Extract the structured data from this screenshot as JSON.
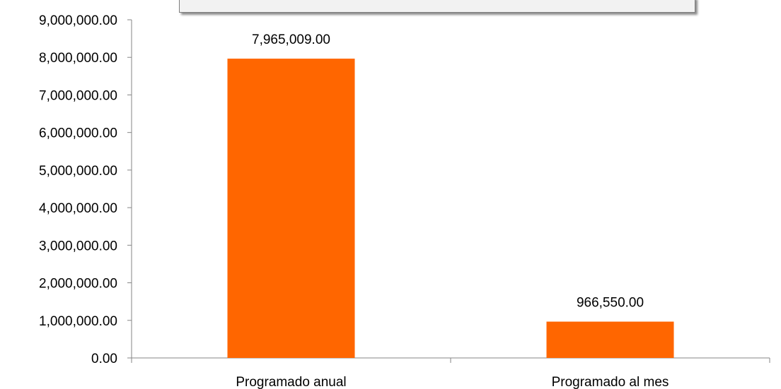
{
  "chart_data": {
    "type": "bar",
    "categories": [
      "Programado anual",
      "Programado al mes"
    ],
    "values": [
      7965009.0,
      966550.0
    ],
    "data_labels": [
      "7,965,009.00",
      "966,550.00"
    ],
    "ylim": [
      0,
      9000000
    ],
    "yticks": [
      0,
      1000000,
      2000000,
      3000000,
      4000000,
      5000000,
      6000000,
      7000000,
      8000000,
      9000000
    ],
    "ytick_labels": [
      "0.00",
      "1,000,000.00",
      "2,000,000.00",
      "3,000,000.00",
      "4,000,000.00",
      "5,000,000.00",
      "6,000,000.00",
      "7,000,000.00",
      "8,000,000.00",
      "9,000,000.00"
    ],
    "title": "",
    "xlabel": "",
    "ylabel": "",
    "grid": false,
    "legend": "none",
    "bar_color": "#ff6600"
  }
}
